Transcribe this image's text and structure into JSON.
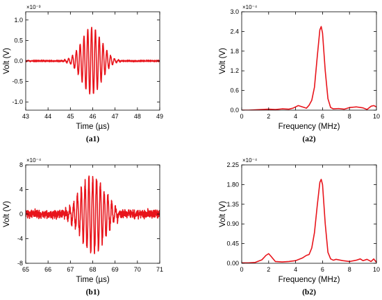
{
  "chart_data": [
    {
      "id": "a1",
      "panel_label": "(a1)",
      "type": "line",
      "xlabel": "Time (µs)",
      "ylabel": "Volt (V)",
      "multiplier": "×10⁻³",
      "xlim": [
        43,
        49
      ],
      "ylim": [
        -1.2,
        1.2
      ],
      "xticks": [
        43,
        44,
        45,
        46,
        47,
        48,
        49
      ],
      "xtick_labels": [
        "43",
        "44",
        "45",
        "46",
        "47",
        "48",
        "49"
      ],
      "yticks": [
        1.0,
        0.5,
        0.0,
        -0.5,
        -1.0
      ],
      "ytick_labels": [
        "1.0",
        "0.5",
        "0.0",
        "-0.5",
        "-1.0"
      ],
      "series": [
        {
          "color": "#e8141b",
          "kind": "wave_packet",
          "center": 45.95,
          "carrier_freq": 5.85,
          "amplitude": 0.82,
          "width": 0.62,
          "noise": 0.025,
          "x_range": [
            43,
            49
          ]
        }
      ]
    },
    {
      "id": "a2",
      "panel_label": "(a2)",
      "type": "line",
      "xlabel": "Frequency (MHz)",
      "ylabel": "Volt (V)",
      "multiplier": "×10⁻⁴",
      "xlim": [
        0,
        10
      ],
      "ylim": [
        0,
        3.0
      ],
      "xticks": [
        0,
        2,
        4,
        6,
        8,
        10
      ],
      "xtick_labels": [
        "0",
        "2",
        "4",
        "6",
        "8",
        "10"
      ],
      "yticks": [
        3.0,
        2.4,
        1.8,
        1.2,
        0.6,
        0.0
      ],
      "ytick_labels": [
        "3.0",
        "2.4",
        "1.8",
        "1.2",
        "0.6",
        "0.0"
      ],
      "series": [
        {
          "color": "#e8141b",
          "kind": "points",
          "x": [
            0,
            0.5,
            1,
            1.5,
            2,
            2.5,
            3,
            3.5,
            3.8,
            4.2,
            4.5,
            4.8,
            5.0,
            5.2,
            5.4,
            5.6,
            5.8,
            5.9,
            6.0,
            6.2,
            6.4,
            6.6,
            6.8,
            7.2,
            7.6,
            8.0,
            8.5,
            9.0,
            9.3,
            9.6,
            9.8,
            10.0
          ],
          "y": [
            0.0,
            0.0,
            0.01,
            0.02,
            0.03,
            0.02,
            0.04,
            0.03,
            0.06,
            0.14,
            0.1,
            0.06,
            0.15,
            0.3,
            0.7,
            1.6,
            2.45,
            2.55,
            2.35,
            1.2,
            0.35,
            0.08,
            0.04,
            0.05,
            0.03,
            0.08,
            0.1,
            0.07,
            0.02,
            0.12,
            0.14,
            0.1
          ]
        }
      ]
    },
    {
      "id": "b1",
      "panel_label": "(b1)",
      "type": "line",
      "xlabel": "Time (µs)",
      "ylabel": "Volt (V)",
      "multiplier": "×10⁻⁴",
      "xlim": [
        65,
        71
      ],
      "ylim": [
        -8,
        8
      ],
      "xticks": [
        65,
        66,
        67,
        68,
        69,
        70,
        71
      ],
      "xtick_labels": [
        "65",
        "66",
        "67",
        "68",
        "69",
        "70",
        "71"
      ],
      "yticks": [
        8,
        4,
        0,
        -4,
        -8
      ],
      "ytick_labels": [
        "8",
        "4",
        "0",
        "-4",
        "-8"
      ],
      "series": [
        {
          "color": "#e8141b",
          "kind": "wave_packet",
          "center": 68.0,
          "carrier_freq": 5.85,
          "amplitude": 6.2,
          "width": 0.75,
          "noise": 0.9,
          "x_range": [
            65,
            71
          ]
        }
      ]
    },
    {
      "id": "b2",
      "panel_label": "(b2)",
      "type": "line",
      "xlabel": "Frequency (MHz)",
      "ylabel": "Volt (V)",
      "multiplier": "×10⁻⁴",
      "xlim": [
        0,
        10
      ],
      "ylim": [
        0,
        2.25
      ],
      "xticks": [
        0,
        2,
        4,
        6,
        8,
        10
      ],
      "xtick_labels": [
        "0",
        "2",
        "4",
        "6",
        "8",
        "10"
      ],
      "yticks": [
        2.25,
        1.8,
        1.35,
        0.9,
        0.45,
        0.0
      ],
      "ytick_labels": [
        "2.25",
        "1.80",
        "1.35",
        "0.90",
        "0.45",
        "0.00"
      ],
      "series": [
        {
          "color": "#e8141b",
          "kind": "points",
          "x": [
            0,
            0.5,
            1.0,
            1.5,
            1.8,
            2.0,
            2.2,
            2.5,
            3.0,
            3.5,
            4.0,
            4.5,
            4.8,
            5.0,
            5.2,
            5.4,
            5.6,
            5.8,
            5.9,
            6.0,
            6.2,
            6.4,
            6.6,
            6.8,
            7.0,
            7.5,
            8.0,
            8.5,
            8.8,
            9.0,
            9.3,
            9.6,
            9.8,
            10.0
          ],
          "y": [
            0.01,
            0.01,
            0.02,
            0.08,
            0.18,
            0.22,
            0.15,
            0.04,
            0.03,
            0.04,
            0.06,
            0.12,
            0.18,
            0.2,
            0.35,
            0.7,
            1.3,
            1.85,
            1.92,
            1.8,
            0.9,
            0.25,
            0.1,
            0.07,
            0.09,
            0.06,
            0.04,
            0.07,
            0.1,
            0.06,
            0.09,
            0.04,
            0.1,
            0.02
          ]
        }
      ]
    }
  ]
}
